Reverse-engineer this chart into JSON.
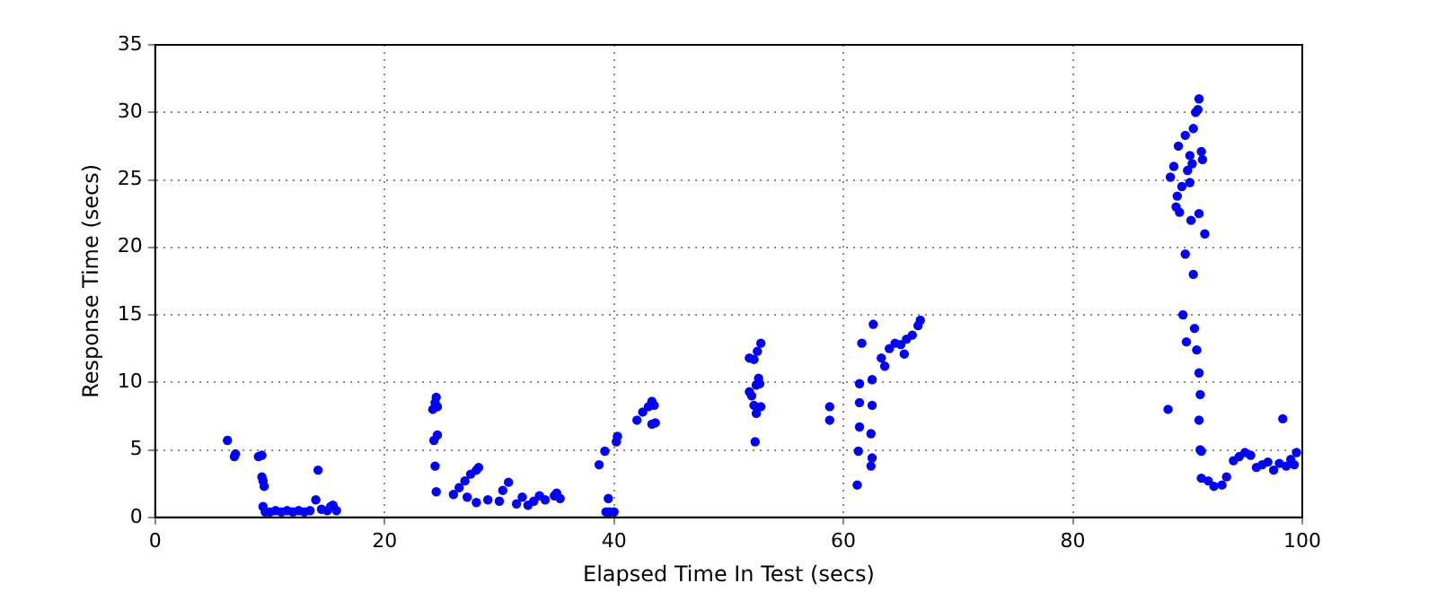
{
  "chart_data": {
    "type": "scatter",
    "xlabel": "Elapsed Time In Test (secs)",
    "ylabel": "Response Time (secs)",
    "xlim": [
      0,
      100
    ],
    "xticks": [
      0,
      20,
      40,
      60,
      80,
      100
    ],
    "ylim": [
      0,
      35
    ],
    "yticks": [
      0,
      5,
      10,
      15,
      20,
      25,
      30,
      35
    ],
    "grid": true,
    "legend": false,
    "marker": "circle",
    "series": [
      {
        "color": "#0000ff",
        "x": [
          6.3,
          6.9,
          7.0,
          9.0,
          9.3,
          9.3,
          9.4,
          9.5,
          9.4,
          9.6,
          10,
          10.5,
          11,
          11.5,
          12,
          12.5,
          13,
          13.5,
          14,
          14.2,
          14.5,
          15,
          15.3,
          15.8,
          15.5,
          24.2,
          24.4,
          24.5,
          24.6,
          24.3,
          24.6,
          24.4,
          24.5,
          26,
          26.5,
          27,
          27.5,
          28,
          28.2,
          27.2,
          28,
          29,
          30,
          30.3,
          30.8,
          31.5,
          32,
          32.5,
          33,
          33.5,
          34,
          34.8,
          35,
          35.3,
          38.7,
          39.2,
          39.3,
          39.6,
          40,
          39.5,
          40.2,
          40.3,
          42,
          42.5,
          43,
          43.3,
          43.5,
          43.3,
          43.6,
          51.8,
          52,
          52.2,
          52.4,
          52.6,
          52.7,
          51.8,
          52.2,
          52.5,
          52.8,
          52.3,
          52.4,
          52.8,
          58.8,
          58.8,
          61.2,
          61.3,
          61.4,
          61.4,
          61.4,
          61.6,
          62.4,
          62.5,
          62.4,
          62.5,
          62.5,
          62.6,
          63.3,
          63.6,
          64,
          64.5,
          65,
          65.5,
          66,
          66.5,
          66.7,
          65.3,
          88.3,
          88.5,
          88.8,
          89,
          89.2,
          89.5,
          89.8,
          90,
          90.2,
          90.5,
          90.7,
          90.9,
          91,
          91.2,
          90.3,
          91,
          90.2,
          89.3,
          89.6,
          89.8,
          90.5,
          90.6,
          90.8,
          91,
          91.1,
          89.9,
          91,
          91.1,
          91.2,
          91.2,
          91.8,
          92.3,
          93,
          93.4,
          94,
          94.5,
          95,
          95.5,
          96,
          96.5,
          97,
          97.5,
          98,
          98.3,
          98.6,
          99,
          99.3,
          99.5,
          90.4,
          91.3,
          89.1,
          91.5
        ],
        "values": [
          5.7,
          4.5,
          4.7,
          4.5,
          4.6,
          3.0,
          2.7,
          2.3,
          0.8,
          0.4,
          0.4,
          0.5,
          0.4,
          0.5,
          0.4,
          0.5,
          0.4,
          0.5,
          1.3,
          3.5,
          0.6,
          0.5,
          0.8,
          0.5,
          0.9,
          8.0,
          8.5,
          8.9,
          8.2,
          5.7,
          6.1,
          3.8,
          1.9,
          1.7,
          2.2,
          2.7,
          3.2,
          3.5,
          3.7,
          1.5,
          1.1,
          1.3,
          1.2,
          2.0,
          2.6,
          1.0,
          1.5,
          0.9,
          1.2,
          1.6,
          1.3,
          1.6,
          1.8,
          1.4,
          3.9,
          4.9,
          0.4,
          0.4,
          0.4,
          1.4,
          5.6,
          6.0,
          7.2,
          7.8,
          8.2,
          8.6,
          8.3,
          6.9,
          7.0,
          9.3,
          9.0,
          8.3,
          9.8,
          10.3,
          9.9,
          11.8,
          11.7,
          12.3,
          12.9,
          5.6,
          7.7,
          8.2,
          8.2,
          7.2,
          2.4,
          4.9,
          6.7,
          8.5,
          9.9,
          12.9,
          3.8,
          4.4,
          6.2,
          8.3,
          10.2,
          14.3,
          11.8,
          11.2,
          12.5,
          12.9,
          12.8,
          13.2,
          13.5,
          14.2,
          14.6,
          12.1,
          8.0,
          25.2,
          26,
          23,
          27.5,
          24.5,
          28.3,
          25.7,
          26.8,
          28.8,
          30.0,
          30.2,
          31.0,
          27.1,
          22,
          22.5,
          24.8,
          22.6,
          15.0,
          19.5,
          18,
          14,
          12.4,
          10.7,
          9.1,
          13,
          7.2,
          5.0,
          4.9,
          2.9,
          2.7,
          2.3,
          2.4,
          3.0,
          4.2,
          4.5,
          4.8,
          4.6,
          3.7,
          3.9,
          4.1,
          3.5,
          4.0,
          7.3,
          3.8,
          4.3,
          3.9,
          4.8,
          26.2,
          26.5,
          23.8,
          21
        ]
      }
    ]
  }
}
